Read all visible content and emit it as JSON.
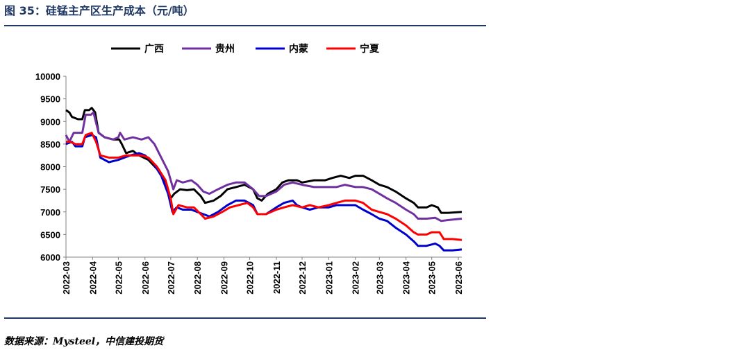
{
  "figure": {
    "title": "图 35：硅锰主产区生产成本（元/吨）",
    "source": "数据来源：Mysteel，中信建投期货"
  },
  "chart_data": {
    "type": "line",
    "title": "",
    "xlabel": "",
    "ylabel": "",
    "ylim": [
      6000,
      10000
    ],
    "yticks": [
      6000,
      6500,
      7000,
      7500,
      8000,
      8500,
      9000,
      9500,
      10000
    ],
    "x_range": [
      "2022-03-01",
      "2023-06-05"
    ],
    "xticks": [
      "2022-03",
      "2022-04",
      "2022-05",
      "2022-06",
      "2022-07",
      "2022-08",
      "2022-09",
      "2022-10",
      "2022-11",
      "2022-12",
      "2023-01",
      "2023-02",
      "2023-03",
      "2023-04",
      "2023-05",
      "2023-06"
    ],
    "grid": false,
    "legend_position": "top",
    "series": [
      {
        "name": "广西",
        "color": "#000000",
        "points": [
          [
            "2022-03-01",
            9250
          ],
          [
            "2022-03-05",
            9200
          ],
          [
            "2022-03-08",
            9100
          ],
          [
            "2022-03-15",
            9050
          ],
          [
            "2022-03-20",
            9050
          ],
          [
            "2022-03-23",
            9250
          ],
          [
            "2022-03-28",
            9250
          ],
          [
            "2022-03-31",
            9300
          ],
          [
            "2022-04-04",
            9200
          ],
          [
            "2022-04-08",
            8750
          ],
          [
            "2022-04-15",
            8650
          ],
          [
            "2022-04-25",
            8600
          ],
          [
            "2022-05-02",
            8600
          ],
          [
            "2022-05-05",
            8500
          ],
          [
            "2022-05-10",
            8300
          ],
          [
            "2022-05-18",
            8350
          ],
          [
            "2022-05-25",
            8250
          ],
          [
            "2022-06-05",
            8150
          ],
          [
            "2022-06-15",
            7950
          ],
          [
            "2022-06-25",
            7650
          ],
          [
            "2022-07-01",
            7300
          ],
          [
            "2022-07-05",
            7400
          ],
          [
            "2022-07-12",
            7500
          ],
          [
            "2022-07-20",
            7480
          ],
          [
            "2022-07-28",
            7500
          ],
          [
            "2022-08-05",
            7350
          ],
          [
            "2022-08-10",
            7200
          ],
          [
            "2022-08-20",
            7250
          ],
          [
            "2022-08-28",
            7350
          ],
          [
            "2022-09-05",
            7500
          ],
          [
            "2022-09-15",
            7550
          ],
          [
            "2022-09-25",
            7600
          ],
          [
            "2022-10-05",
            7500
          ],
          [
            "2022-10-10",
            7300
          ],
          [
            "2022-10-15",
            7250
          ],
          [
            "2022-10-22",
            7400
          ],
          [
            "2022-11-01",
            7500
          ],
          [
            "2022-11-08",
            7650
          ],
          [
            "2022-11-15",
            7700
          ],
          [
            "2022-11-25",
            7700
          ],
          [
            "2022-12-01",
            7650
          ],
          [
            "2022-12-15",
            7700
          ],
          [
            "2022-12-28",
            7700
          ],
          [
            "2023-01-05",
            7750
          ],
          [
            "2023-01-15",
            7800
          ],
          [
            "2023-01-25",
            7750
          ],
          [
            "2023-02-01",
            7800
          ],
          [
            "2023-02-10",
            7800
          ],
          [
            "2023-02-20",
            7700
          ],
          [
            "2023-03-01",
            7600
          ],
          [
            "2023-03-10",
            7550
          ],
          [
            "2023-03-20",
            7450
          ],
          [
            "2023-04-01",
            7300
          ],
          [
            "2023-04-10",
            7200
          ],
          [
            "2023-04-15",
            7100
          ],
          [
            "2023-04-25",
            7100
          ],
          [
            "2023-05-01",
            7150
          ],
          [
            "2023-05-08",
            7100
          ],
          [
            "2023-05-12",
            6980
          ],
          [
            "2023-05-20",
            6980
          ],
          [
            "2023-06-05",
            7000
          ]
        ]
      },
      {
        "name": "贵州",
        "color": "#7030a0",
        "points": [
          [
            "2022-03-01",
            8700
          ],
          [
            "2022-03-05",
            8550
          ],
          [
            "2022-03-10",
            8750
          ],
          [
            "2022-03-20",
            8750
          ],
          [
            "2022-03-24",
            9150
          ],
          [
            "2022-03-30",
            9150
          ],
          [
            "2022-04-02",
            9200
          ],
          [
            "2022-04-08",
            8750
          ],
          [
            "2022-04-15",
            8650
          ],
          [
            "2022-04-25",
            8600
          ],
          [
            "2022-05-01",
            8650
          ],
          [
            "2022-05-03",
            8750
          ],
          [
            "2022-05-08",
            8600
          ],
          [
            "2022-05-18",
            8650
          ],
          [
            "2022-05-28",
            8600
          ],
          [
            "2022-06-05",
            8650
          ],
          [
            "2022-06-12",
            8500
          ],
          [
            "2022-06-20",
            8200
          ],
          [
            "2022-06-28",
            7900
          ],
          [
            "2022-07-04",
            7500
          ],
          [
            "2022-07-08",
            7700
          ],
          [
            "2022-07-15",
            7650
          ],
          [
            "2022-07-25",
            7700
          ],
          [
            "2022-08-01",
            7600
          ],
          [
            "2022-08-08",
            7450
          ],
          [
            "2022-08-15",
            7400
          ],
          [
            "2022-08-25",
            7500
          ],
          [
            "2022-09-05",
            7600
          ],
          [
            "2022-09-15",
            7650
          ],
          [
            "2022-09-25",
            7650
          ],
          [
            "2022-10-05",
            7500
          ],
          [
            "2022-10-12",
            7350
          ],
          [
            "2022-10-20",
            7350
          ],
          [
            "2022-11-01",
            7450
          ],
          [
            "2022-11-10",
            7600
          ],
          [
            "2022-11-20",
            7650
          ],
          [
            "2022-12-01",
            7600
          ],
          [
            "2022-12-15",
            7550
          ],
          [
            "2022-12-28",
            7550
          ],
          [
            "2023-01-10",
            7550
          ],
          [
            "2023-01-20",
            7600
          ],
          [
            "2023-02-01",
            7550
          ],
          [
            "2023-02-10",
            7550
          ],
          [
            "2023-02-20",
            7500
          ],
          [
            "2023-03-01",
            7400
          ],
          [
            "2023-03-10",
            7300
          ],
          [
            "2023-03-20",
            7200
          ],
          [
            "2023-04-01",
            7050
          ],
          [
            "2023-04-10",
            6950
          ],
          [
            "2023-04-15",
            6850
          ],
          [
            "2023-04-25",
            6850
          ],
          [
            "2023-05-05",
            6870
          ],
          [
            "2023-05-12",
            6800
          ],
          [
            "2023-05-20",
            6820
          ],
          [
            "2023-06-05",
            6850
          ]
        ]
      },
      {
        "name": "内蒙",
        "color": "#0000cc",
        "points": [
          [
            "2022-03-01",
            8500
          ],
          [
            "2022-03-08",
            8550
          ],
          [
            "2022-03-12",
            8450
          ],
          [
            "2022-03-20",
            8450
          ],
          [
            "2022-03-23",
            8650
          ],
          [
            "2022-03-31",
            8700
          ],
          [
            "2022-04-05",
            8650
          ],
          [
            "2022-04-10",
            8200
          ],
          [
            "2022-04-20",
            8100
          ],
          [
            "2022-05-01",
            8150
          ],
          [
            "2022-05-08",
            8200
          ],
          [
            "2022-05-15",
            8250
          ],
          [
            "2022-05-25",
            8300
          ],
          [
            "2022-06-01",
            8250
          ],
          [
            "2022-06-10",
            8100
          ],
          [
            "2022-06-20",
            7800
          ],
          [
            "2022-06-28",
            7400
          ],
          [
            "2022-07-03",
            7000
          ],
          [
            "2022-07-08",
            7100
          ],
          [
            "2022-07-15",
            7050
          ],
          [
            "2022-07-25",
            7050
          ],
          [
            "2022-08-01",
            7000
          ],
          [
            "2022-08-08",
            6950
          ],
          [
            "2022-08-15",
            6900
          ],
          [
            "2022-08-25",
            7000
          ],
          [
            "2022-09-05",
            7150
          ],
          [
            "2022-09-15",
            7250
          ],
          [
            "2022-09-25",
            7250
          ],
          [
            "2022-10-05",
            7150
          ],
          [
            "2022-10-10",
            6950
          ],
          [
            "2022-10-20",
            6950
          ],
          [
            "2022-11-01",
            7100
          ],
          [
            "2022-11-10",
            7200
          ],
          [
            "2022-11-20",
            7250
          ],
          [
            "2022-11-25",
            7150
          ],
          [
            "2022-12-01",
            7100
          ],
          [
            "2022-12-10",
            7050
          ],
          [
            "2022-12-20",
            7100
          ],
          [
            "2023-01-01",
            7100
          ],
          [
            "2023-01-10",
            7150
          ],
          [
            "2023-01-20",
            7150
          ],
          [
            "2023-02-01",
            7150
          ],
          [
            "2023-02-10",
            7050
          ],
          [
            "2023-02-20",
            6950
          ],
          [
            "2023-03-01",
            6850
          ],
          [
            "2023-03-10",
            6800
          ],
          [
            "2023-03-20",
            6650
          ],
          [
            "2023-04-01",
            6500
          ],
          [
            "2023-04-10",
            6350
          ],
          [
            "2023-04-15",
            6250
          ],
          [
            "2023-04-25",
            6250
          ],
          [
            "2023-05-05",
            6300
          ],
          [
            "2023-05-10",
            6250
          ],
          [
            "2023-05-15",
            6150
          ],
          [
            "2023-05-25",
            6150
          ],
          [
            "2023-06-05",
            6170
          ]
        ]
      },
      {
        "name": "宁夏",
        "color": "#ff0000",
        "points": [
          [
            "2022-03-01",
            8550
          ],
          [
            "2022-03-06",
            8550
          ],
          [
            "2022-03-12",
            8500
          ],
          [
            "2022-03-20",
            8500
          ],
          [
            "2022-03-24",
            8700
          ],
          [
            "2022-03-31",
            8750
          ],
          [
            "2022-04-05",
            8550
          ],
          [
            "2022-04-10",
            8250
          ],
          [
            "2022-04-20",
            8200
          ],
          [
            "2022-05-01",
            8200
          ],
          [
            "2022-05-10",
            8250
          ],
          [
            "2022-05-20",
            8250
          ],
          [
            "2022-05-28",
            8250
          ],
          [
            "2022-06-05",
            8200
          ],
          [
            "2022-06-15",
            8000
          ],
          [
            "2022-06-25",
            7700
          ],
          [
            "2022-07-01",
            7300
          ],
          [
            "2022-07-04",
            6950
          ],
          [
            "2022-07-10",
            7150
          ],
          [
            "2022-07-20",
            7100
          ],
          [
            "2022-07-28",
            7100
          ],
          [
            "2022-08-05",
            6950
          ],
          [
            "2022-08-10",
            6850
          ],
          [
            "2022-08-20",
            6900
          ],
          [
            "2022-08-30",
            7000
          ],
          [
            "2022-09-08",
            7100
          ],
          [
            "2022-09-18",
            7150
          ],
          [
            "2022-09-28",
            7200
          ],
          [
            "2022-10-05",
            7100
          ],
          [
            "2022-10-10",
            6950
          ],
          [
            "2022-10-20",
            6950
          ],
          [
            "2022-11-01",
            7050
          ],
          [
            "2022-11-10",
            7100
          ],
          [
            "2022-11-20",
            7150
          ],
          [
            "2022-12-01",
            7100
          ],
          [
            "2022-12-10",
            7150
          ],
          [
            "2022-12-20",
            7100
          ],
          [
            "2023-01-01",
            7150
          ],
          [
            "2023-01-10",
            7200
          ],
          [
            "2023-01-20",
            7250
          ],
          [
            "2023-02-01",
            7250
          ],
          [
            "2023-02-10",
            7200
          ],
          [
            "2023-02-20",
            7050
          ],
          [
            "2023-03-01",
            7000
          ],
          [
            "2023-03-10",
            6950
          ],
          [
            "2023-03-20",
            6850
          ],
          [
            "2023-04-01",
            6700
          ],
          [
            "2023-04-10",
            6550
          ],
          [
            "2023-04-15",
            6500
          ],
          [
            "2023-04-25",
            6500
          ],
          [
            "2023-05-01",
            6550
          ],
          [
            "2023-05-10",
            6550
          ],
          [
            "2023-05-15",
            6400
          ],
          [
            "2023-05-25",
            6400
          ],
          [
            "2023-06-05",
            6380
          ]
        ]
      }
    ]
  }
}
